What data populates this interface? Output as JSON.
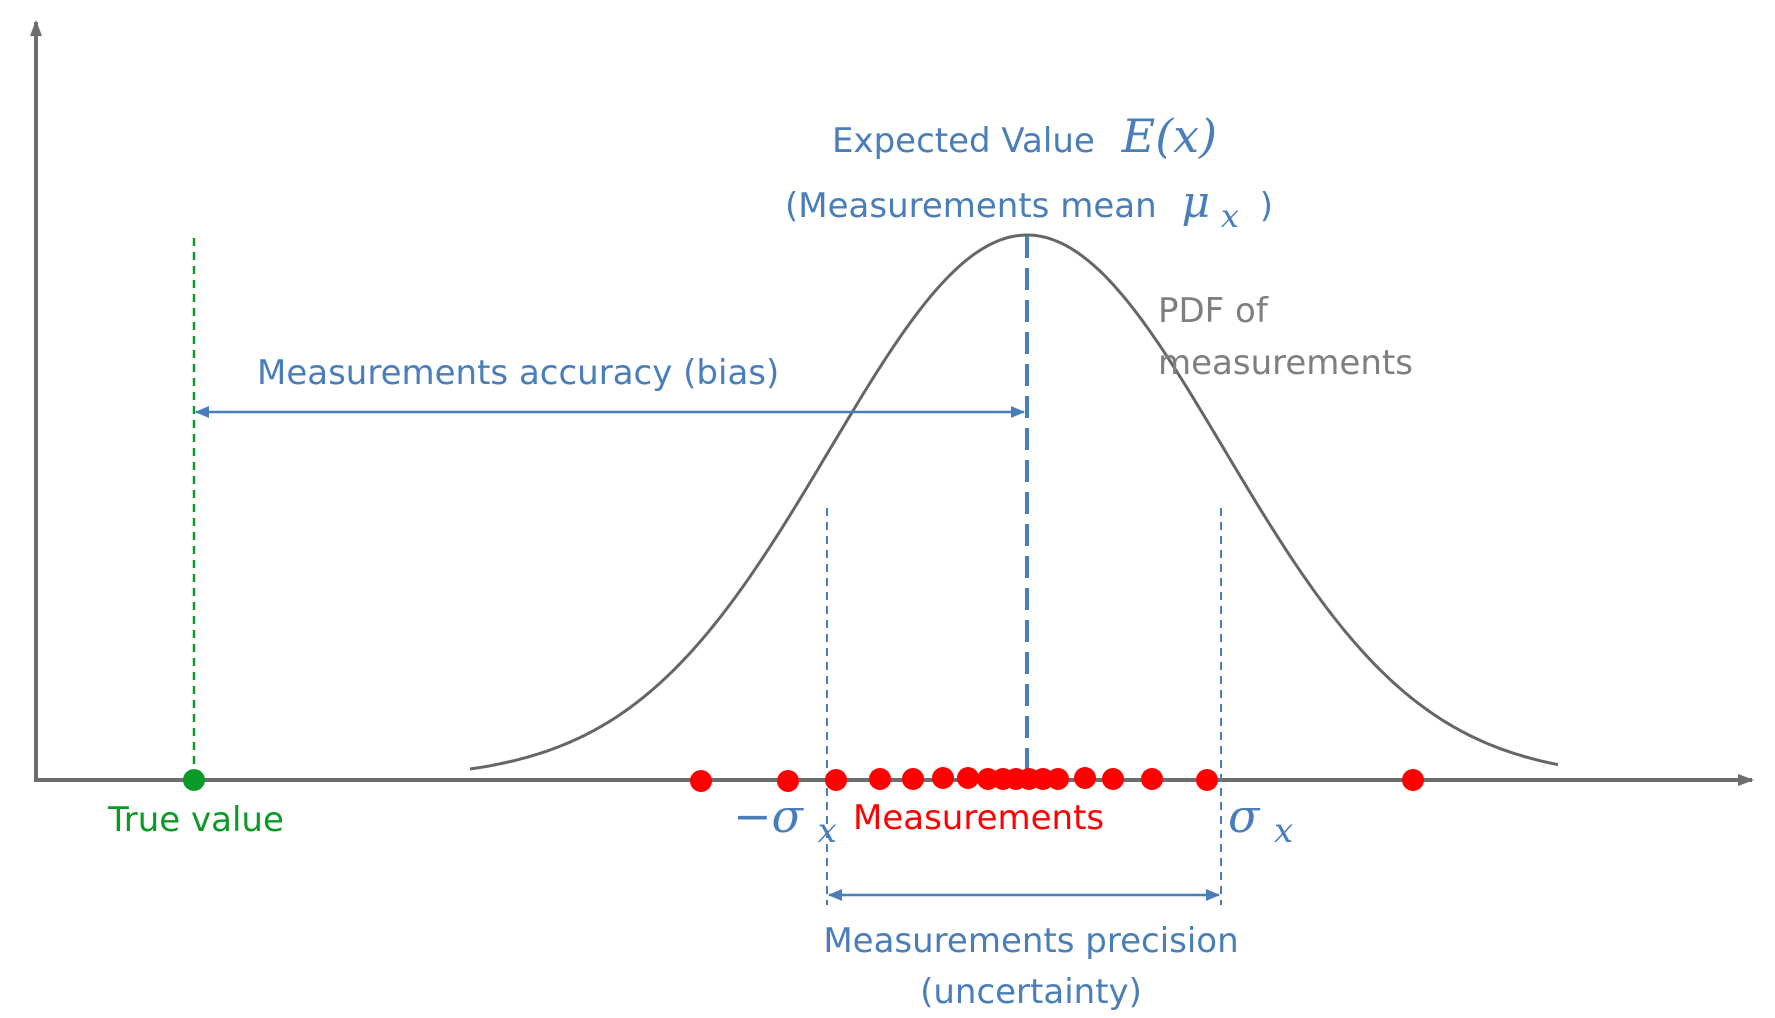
{
  "title": "",
  "labels": {
    "expected_value": "Expected Value",
    "expected_value_math": "E(x)",
    "mean_open": "(Measurements mean",
    "mean_symbol": "μ",
    "mean_sub": "x",
    "mean_close": ")",
    "pdf_line1": "PDF of",
    "pdf_line2": "measurements",
    "accuracy": "Measurements accuracy (bias)",
    "true_value": "True value",
    "measurements": "Measurements",
    "neg_sigma_symbol": "−σ",
    "neg_sigma_sub": "x",
    "sigma_symbol": "σ",
    "sigma_sub": "x",
    "precision_line1": "Measurements precision",
    "precision_line2": "(uncertainty)"
  },
  "colors": {
    "axis": "#6d6d6d",
    "curve": "#666666",
    "blue": "#4a7ebb",
    "green": "#0b9a28",
    "red": "#ff0000",
    "gray_text": "#7f7f7f"
  },
  "icons": {
    "axis_arrow": "arrowhead-icon",
    "dimension_arrow": "double-arrow-icon"
  }
}
